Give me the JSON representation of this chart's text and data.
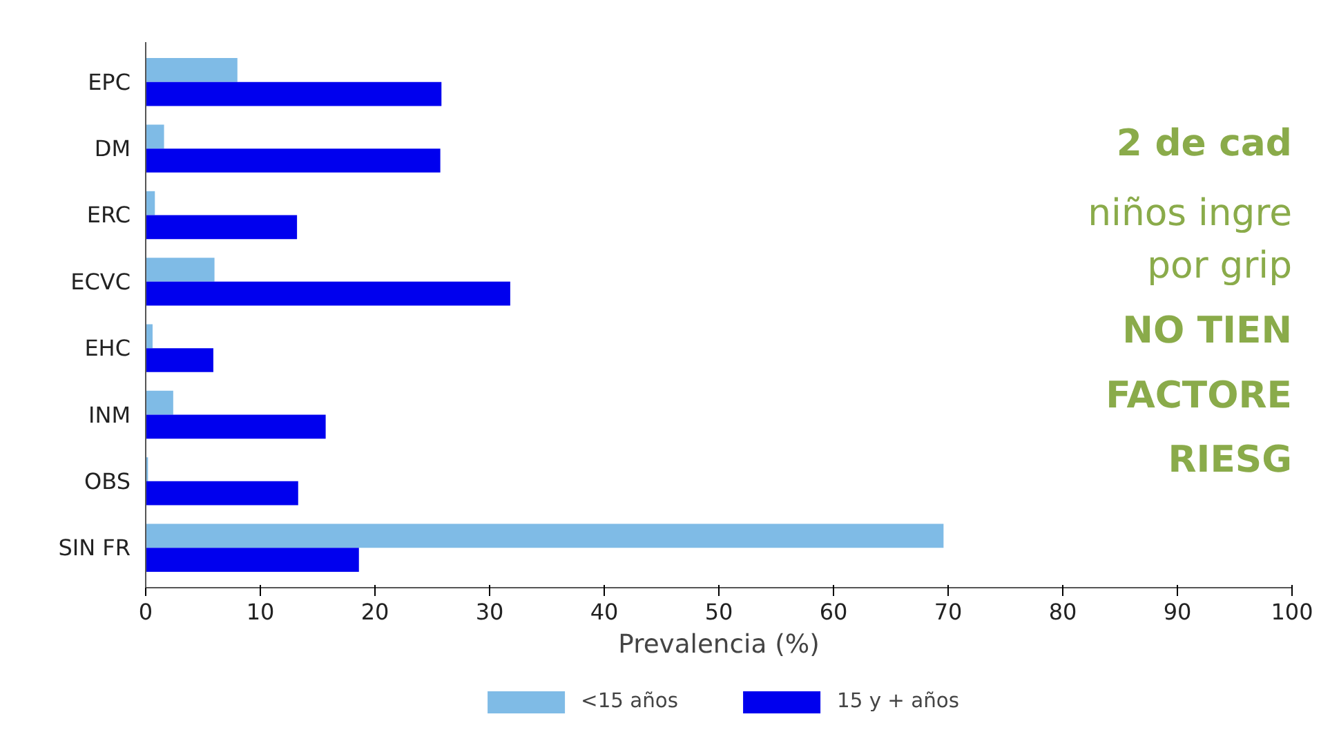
{
  "chart_data": {
    "type": "bar",
    "orientation": "horizontal",
    "xlabel": "Prevalencia (%)",
    "categories": [
      "EPC",
      "DM",
      "ERC",
      "ECVC",
      "EHC",
      "INM",
      "OBS",
      "SIN FR"
    ],
    "series": [
      {
        "name": "<15 años",
        "color": "#7fbbe6",
        "values": [
          8.0,
          1.6,
          0.8,
          6.0,
          0.6,
          2.4,
          0.2,
          69.6
        ]
      },
      {
        "name": "15 y + años",
        "color": "#0000ee",
        "values": [
          25.8,
          25.7,
          13.2,
          31.8,
          5.9,
          15.7,
          13.3,
          18.6
        ]
      }
    ],
    "xlim": [
      0,
      100
    ],
    "xticks": [
      0,
      10,
      20,
      30,
      40,
      50,
      60,
      70,
      80,
      90,
      100
    ],
    "grid": false,
    "legend": "bottom",
    "annotations": [
      "2 de cad",
      "niños ingre",
      "por grip",
      "NO TIEN",
      "FACTORE",
      "RIESG"
    ]
  }
}
